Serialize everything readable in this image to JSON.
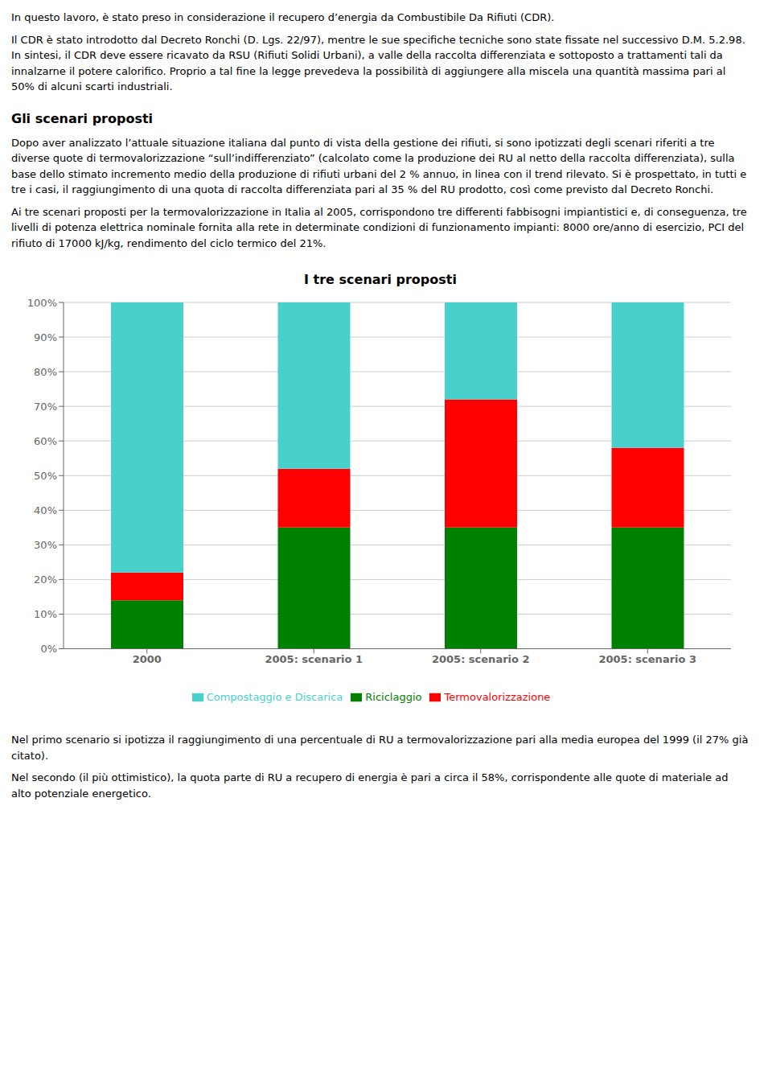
{
  "chart_data": {
    "type": "bar",
    "title": "I tre scenari proposti",
    "categories": [
      "2000",
      "2005: scenario 1",
      "2005: scenario 2",
      "2005: scenario 3"
    ],
    "series": [
      {
        "name": "Riciclaggio",
        "color": "#008000",
        "values": [
          14,
          35,
          35,
          35
        ]
      },
      {
        "name": "Termovalorizzazione",
        "color": "#FF0000",
        "values": [
          8,
          17,
          37,
          23
        ]
      },
      {
        "name": "Compostaggio e Discarica",
        "color": "#48D1CC",
        "values": [
          78,
          48,
          28,
          42
        ]
      }
    ],
    "stacked": true,
    "ylim": [
      0,
      100
    ],
    "yticks": [
      {
        "value": 0,
        "label": "0%"
      },
      {
        "value": 10,
        "label": "10%"
      },
      {
        "value": 20,
        "label": "20%"
      },
      {
        "value": 30,
        "label": "30%"
      },
      {
        "value": 40,
        "label": "40%"
      },
      {
        "value": 50,
        "label": "50%"
      },
      {
        "value": 60,
        "label": "60%"
      },
      {
        "value": 70,
        "label": "70%"
      },
      {
        "value": 80,
        "label": "80%"
      },
      {
        "value": 90,
        "label": "90%"
      },
      {
        "value": 100,
        "label": "100%"
      }
    ],
    "grid": true,
    "legend": "bottom",
    "annotations": [
      "In questo lavoro, è stato preso in considerazione il recupero d’energia da Combustibile Da Rifiuti (CDR).",
      "Il CDR è stato introdotto dal Decreto Ronchi (D. Lgs. 22/97), mentre le sue specifiche tecniche sono state fissate nel successivo D.M. 5.2.98. In sintesi, il CDR deve essere ricavato da RSU (Rifiuti Solidi Urbani), a valle della raccolta differenziata e sottoposto a trattamenti tali da innalzarne il potere calorifico. Proprio a tal fine la legge prevedeva la possibilità di aggiungere alla miscela una quantità massima pari al 50% di alcuni scarti industriali.",
      "Gli scenari proposti",
      "Dopo aver analizzato l’attuale situazione italiana dal punto di vista della gestione dei rifiuti, si sono ipotizzati degli scenari riferiti a tre diverse quote di termovalorizzazione “sull’indifferenziato” (calcolato come la produzione dei RU al netto della raccolta differenziata), sulla base dello stimato incremento medio della produzione di rifiuti urbani del 2 % annuo, in linea con il trend rilevato. Si è prospettato, in tutti e tre i casi, il raggiungimento di una quota di raccolta differenziata pari al 35 % del RU prodotto, così come previsto dal Decreto Ronchi.",
      "Ai  tre scenari proposti per la termovalorizzazione in Italia al 2005, corrispondono tre differenti fabbisogni impiantistici e, di conseguenza, tre livelli di potenza elettrica nominale fornita alla rete in determinate condizioni di funzionamento impianti: 8000 ore/anno di esercizio, PCI del rifiuto di 17000 kJ/kg, rendimento del ciclo termico del 21%.",
      "Nel primo scenario si ipotizza il raggiungimento di una percentuale di RU a termovalorizzazione pari alla media europea del 1999 (il 27% già citato).",
      "Nel secondo (il più ottimistico), la quota parte di RU a recupero di energia è pari a circa il 58%, corrispondente alle quote di materiale ad alto potenziale energetico."
    ]
  }
}
